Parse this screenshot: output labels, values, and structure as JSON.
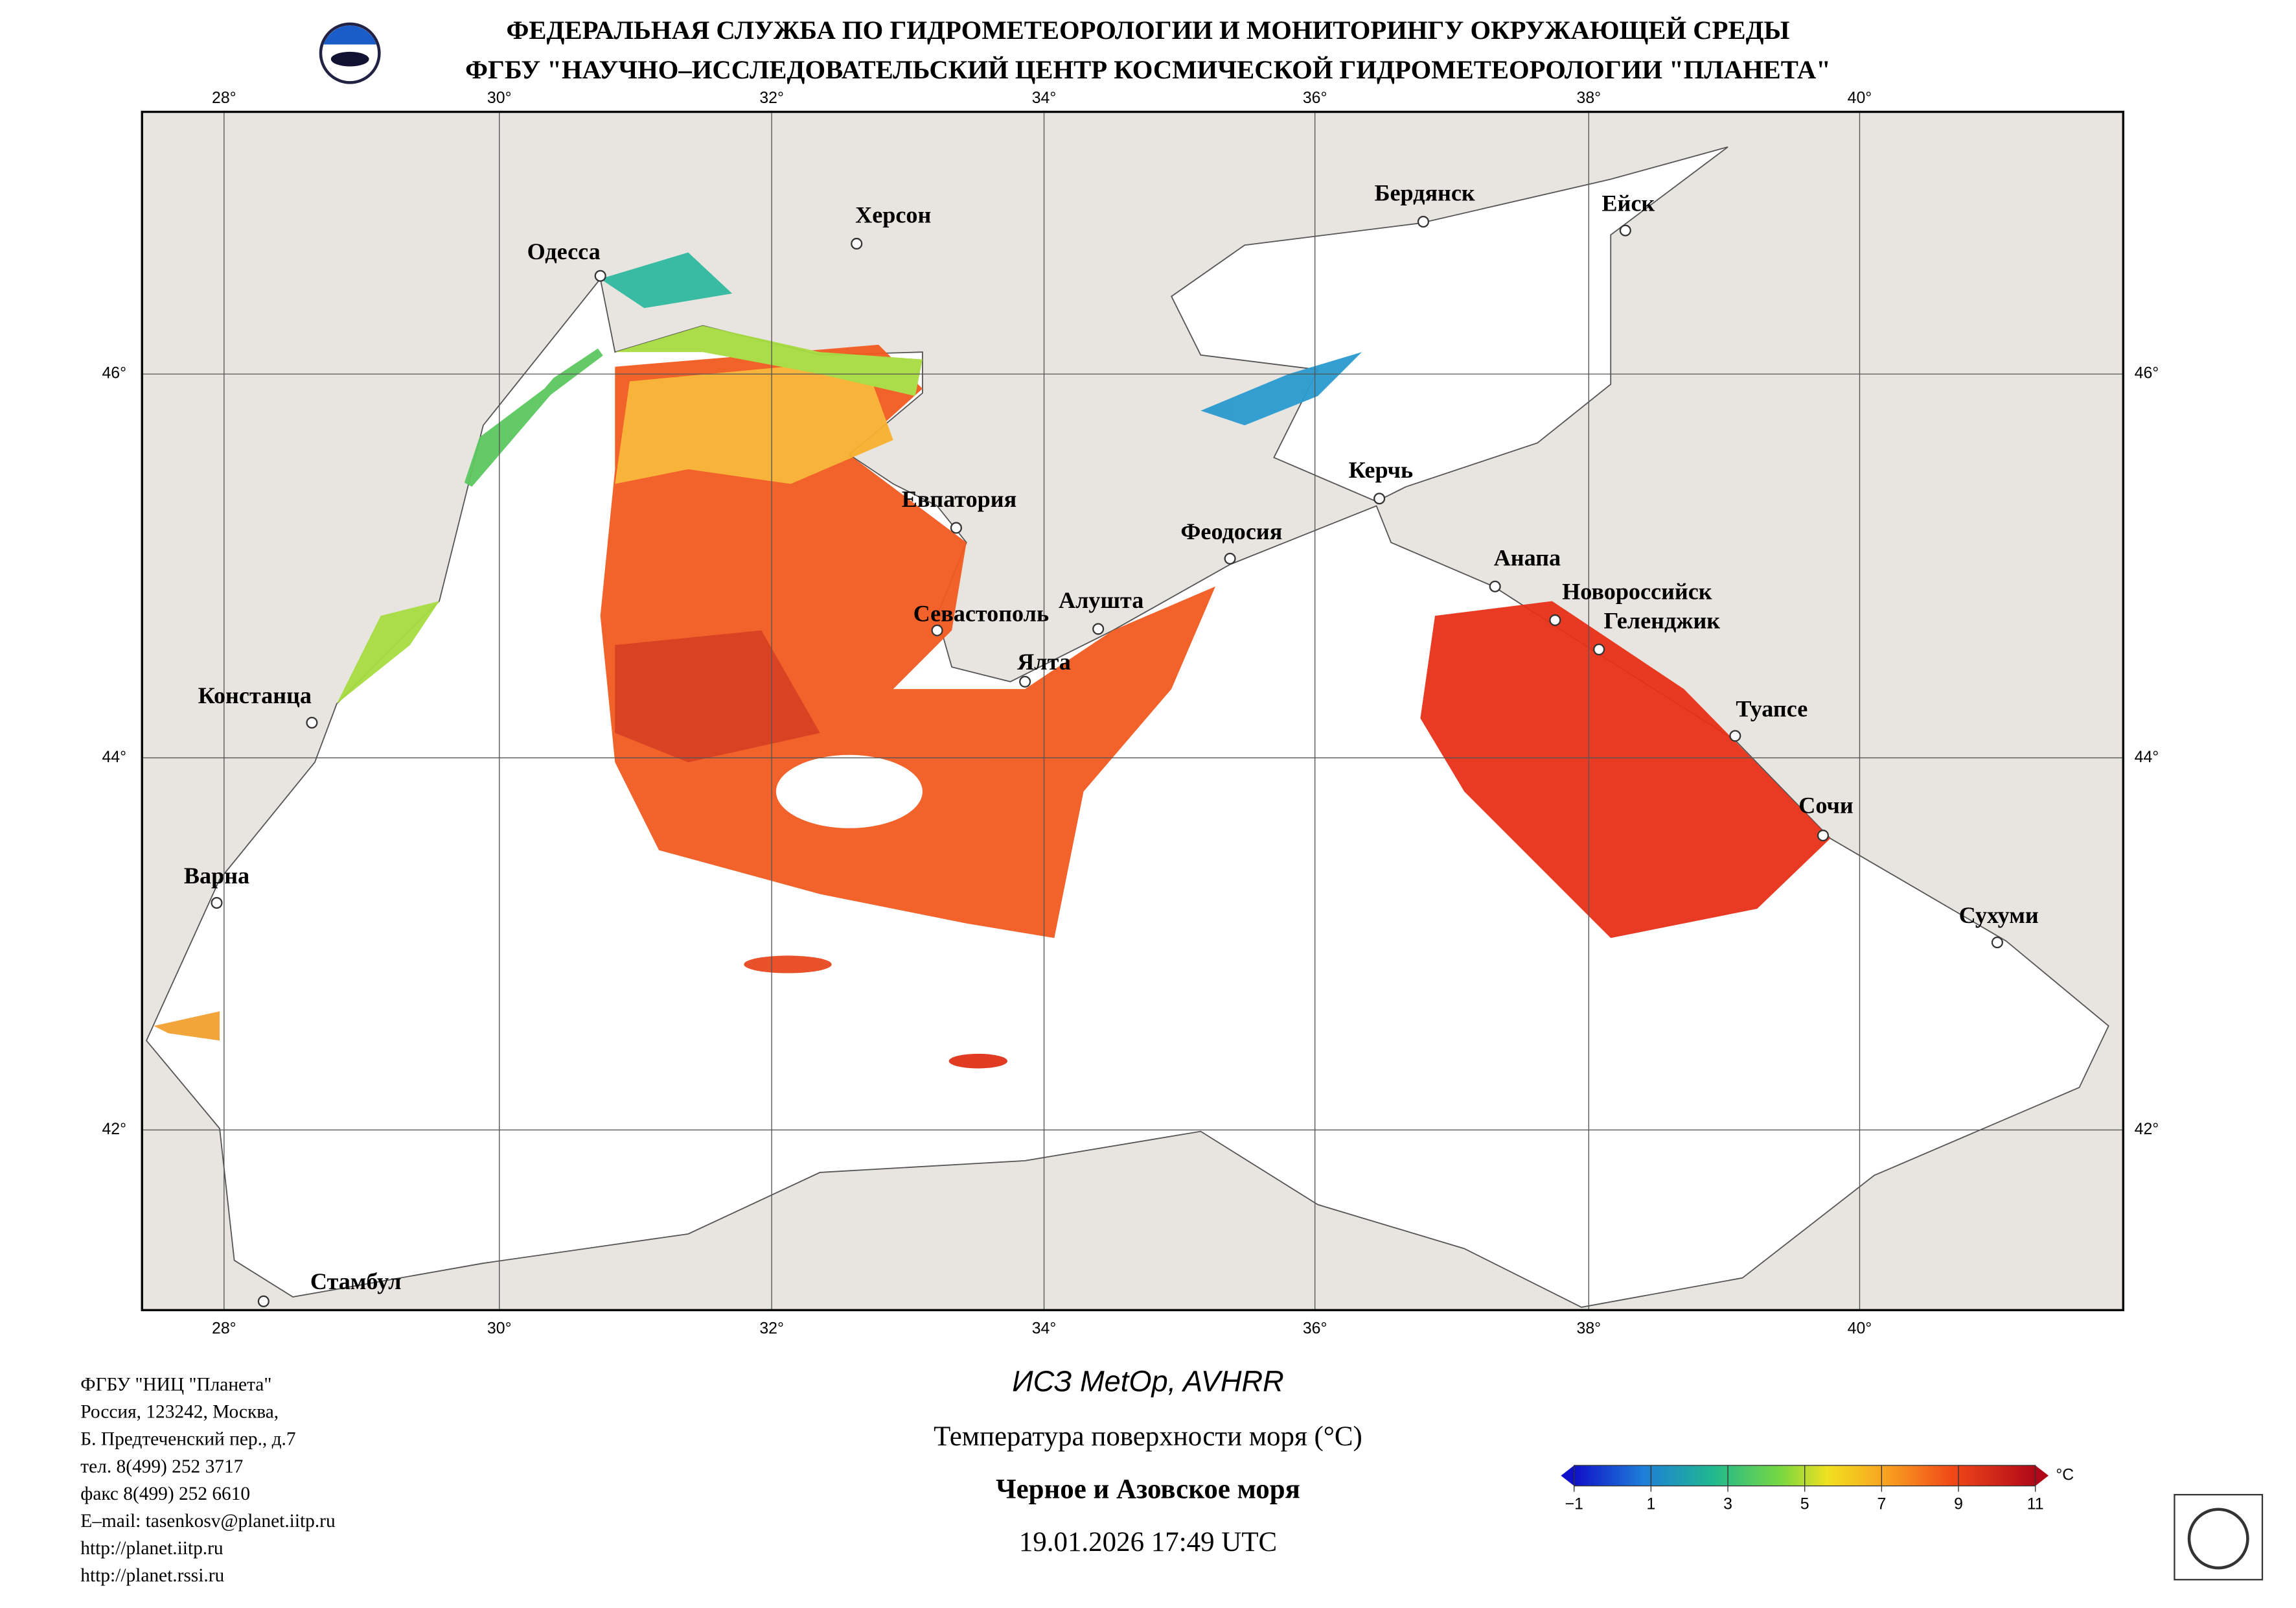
{
  "header": {
    "line1": "ФЕДЕРАЛЬНАЯ СЛУЖБА ПО ГИДРОМЕТЕОРОЛОГИИ И МОНИТОРИНГУ ОКРУЖАЮЩЕЙ СРЕДЫ",
    "line2": "ФГБУ \"НАУЧНО–ИССЛЕДОВАТЕЛЬСКИЙ ЦЕНТР КОСМИЧЕСКОЙ ГИДРОМЕТЕОРОЛОГИИ \"ПЛАНЕТА\""
  },
  "map": {
    "lon_labels": [
      "28°",
      "30°",
      "32°",
      "34°",
      "36°",
      "38°",
      "40°"
    ],
    "lat_labels": [
      "46°",
      "44°",
      "42°"
    ],
    "cities": [
      "Одесса",
      "Херсон",
      "Бердянск",
      "Ейск",
      "Евпатория",
      "Керчь",
      "Феодосия",
      "Анапа",
      "Новороссийск",
      "Геленджик",
      "Севастополь",
      "Алушта",
      "Ялта",
      "Туапсе",
      "Сочи",
      "Констанца",
      "Варна",
      "Сухуми",
      "Стамбул"
    ]
  },
  "footer": {
    "address": [
      "ФГБУ \"НИЦ \"Планета\"",
      "Россия, 123242, Москва,",
      "Б. Предтеченский пер., д.7",
      "тел. 8(499) 252 3717",
      "факс 8(499) 252 6610",
      "E–mail: tasenkosv@planet.iitp.ru",
      "http://planet.iitp.ru",
      "http://planet.rssi.ru"
    ],
    "satellite": "ИСЗ MetOp, AVHRR",
    "product": "Температура поверхности моря (°C)",
    "region": "Черное и Азовское моря",
    "datetime": "19.01.2026 17:49 UTC"
  },
  "colorbar": {
    "ticks": [
      {
        "value": -1,
        "label": "−1"
      },
      1,
      3,
      5,
      7,
      9,
      11
    ],
    "unit": "°C"
  }
}
